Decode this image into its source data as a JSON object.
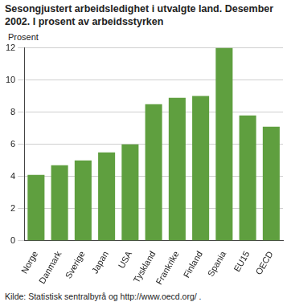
{
  "chart_data": {
    "type": "bar",
    "title": [
      "Sesongjustert arbeidsledighet i utvalgte land. Desember",
      "2002. I prosent av arbeidsstyrken"
    ],
    "y_label": "Prosent",
    "source": "Kilde: Statistisk sentralbyrå og http://www.oecd.org/ .",
    "categories": [
      "Norge",
      "Danmark",
      "Sverige",
      "Japan",
      "USA",
      "Tyskland",
      "Frankrike",
      "Finland",
      "Spania",
      "EU15",
      "OECD"
    ],
    "values": [
      4.1,
      4.7,
      5.0,
      5.5,
      6.0,
      8.5,
      8.9,
      9.0,
      12.0,
      7.8,
      7.1
    ],
    "color": "#5f9f3f",
    "ylim": [
      0,
      12
    ],
    "yticks": [
      0,
      2,
      4,
      6,
      8,
      10,
      12
    ],
    "grid": true
  }
}
